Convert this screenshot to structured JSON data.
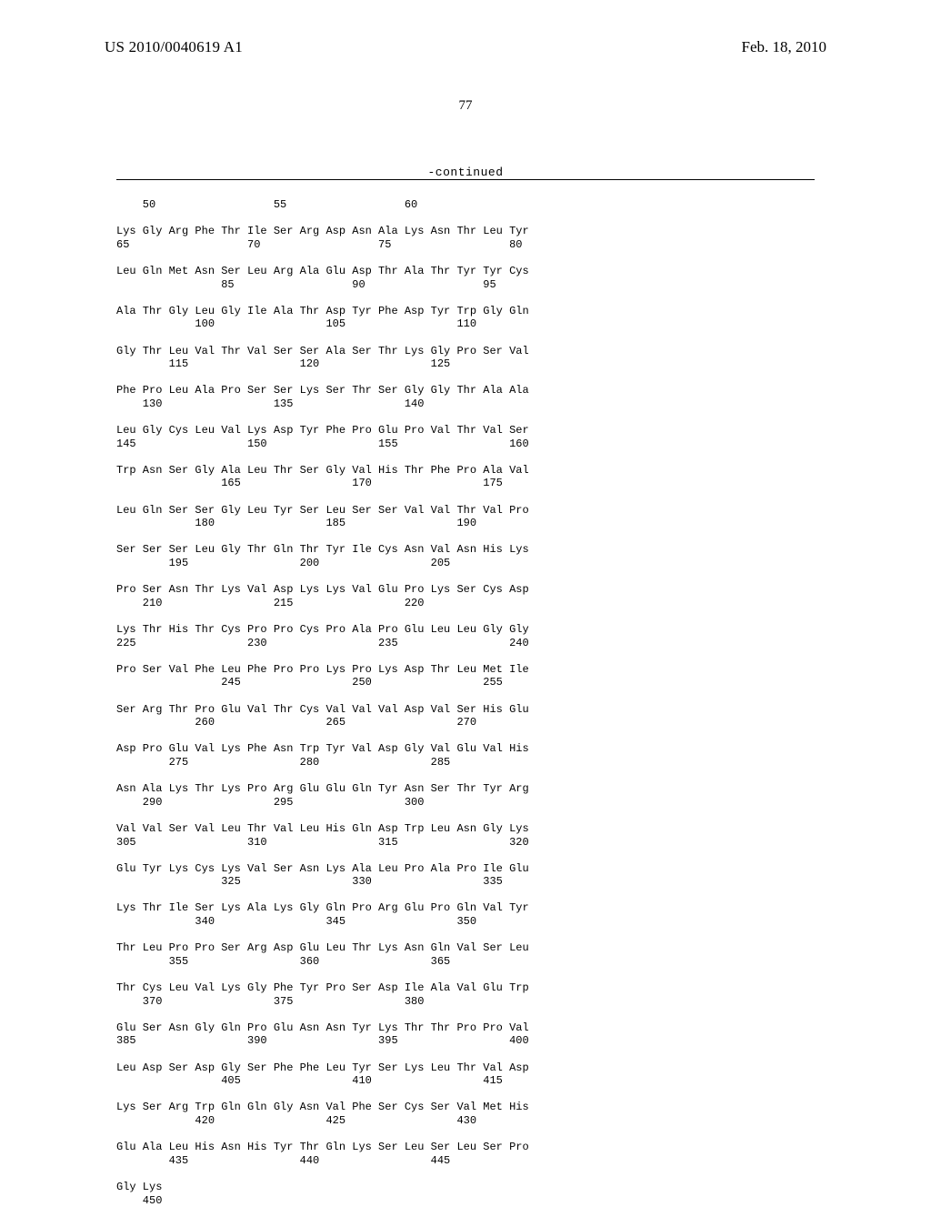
{
  "header": {
    "pub_number": "US 2010/0040619 A1",
    "pub_date": "Feb. 18, 2010"
  },
  "page_number": "77",
  "continued_label": "-continued",
  "sequence_text": "    50                  55                  60\n\nLys Gly Arg Phe Thr Ile Ser Arg Asp Asn Ala Lys Asn Thr Leu Tyr\n65                  70                  75                  80\n\nLeu Gln Met Asn Ser Leu Arg Ala Glu Asp Thr Ala Thr Tyr Tyr Cys\n                85                  90                  95\n\nAla Thr Gly Leu Gly Ile Ala Thr Asp Tyr Phe Asp Tyr Trp Gly Gln\n            100                 105                 110\n\nGly Thr Leu Val Thr Val Ser Ser Ala Ser Thr Lys Gly Pro Ser Val\n        115                 120                 125\n\nPhe Pro Leu Ala Pro Ser Ser Lys Ser Thr Ser Gly Gly Thr Ala Ala\n    130                 135                 140\n\nLeu Gly Cys Leu Val Lys Asp Tyr Phe Pro Glu Pro Val Thr Val Ser\n145                 150                 155                 160\n\nTrp Asn Ser Gly Ala Leu Thr Ser Gly Val His Thr Phe Pro Ala Val\n                165                 170                 175\n\nLeu Gln Ser Ser Gly Leu Tyr Ser Leu Ser Ser Val Val Thr Val Pro\n            180                 185                 190\n\nSer Ser Ser Leu Gly Thr Gln Thr Tyr Ile Cys Asn Val Asn His Lys\n        195                 200                 205\n\nPro Ser Asn Thr Lys Val Asp Lys Lys Val Glu Pro Lys Ser Cys Asp\n    210                 215                 220\n\nLys Thr His Thr Cys Pro Pro Cys Pro Ala Pro Glu Leu Leu Gly Gly\n225                 230                 235                 240\n\nPro Ser Val Phe Leu Phe Pro Pro Lys Pro Lys Asp Thr Leu Met Ile\n                245                 250                 255\n\nSer Arg Thr Pro Glu Val Thr Cys Val Val Val Asp Val Ser His Glu\n            260                 265                 270\n\nAsp Pro Glu Val Lys Phe Asn Trp Tyr Val Asp Gly Val Glu Val His\n        275                 280                 285\n\nAsn Ala Lys Thr Lys Pro Arg Glu Glu Gln Tyr Asn Ser Thr Tyr Arg\n    290                 295                 300\n\nVal Val Ser Val Leu Thr Val Leu His Gln Asp Trp Leu Asn Gly Lys\n305                 310                 315                 320\n\nGlu Tyr Lys Cys Lys Val Ser Asn Lys Ala Leu Pro Ala Pro Ile Glu\n                325                 330                 335\n\nLys Thr Ile Ser Lys Ala Lys Gly Gln Pro Arg Glu Pro Gln Val Tyr\n            340                 345                 350\n\nThr Leu Pro Pro Ser Arg Asp Glu Leu Thr Lys Asn Gln Val Ser Leu\n        355                 360                 365\n\nThr Cys Leu Val Lys Gly Phe Tyr Pro Ser Asp Ile Ala Val Glu Trp\n    370                 375                 380\n\nGlu Ser Asn Gly Gln Pro Glu Asn Asn Tyr Lys Thr Thr Pro Pro Val\n385                 390                 395                 400\n\nLeu Asp Ser Asp Gly Ser Phe Phe Leu Tyr Ser Lys Leu Thr Val Asp\n                405                 410                 415\n\nLys Ser Arg Trp Gln Gln Gly Asn Val Phe Ser Cys Ser Val Met His\n            420                 425                 430\n\nGlu Ala Leu His Asn His Tyr Thr Gln Lys Ser Leu Ser Leu Ser Pro\n        435                 440                 445\n\nGly Lys\n    450"
}
